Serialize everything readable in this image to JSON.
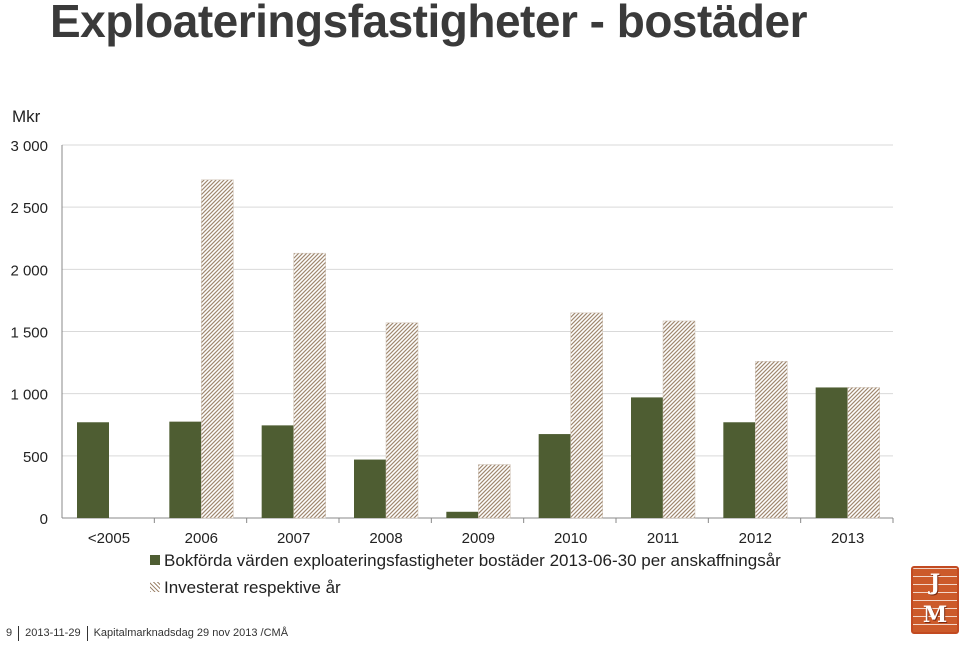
{
  "slide": {
    "title": "Exploateringsfastigheter - bostäder",
    "unit_label": "Mkr"
  },
  "footer": {
    "page_number": "9",
    "date": "2013-11-29",
    "event": "Kapitalmarknadsdag 29 nov 2013 /CMÅ"
  },
  "logo": {
    "letters": [
      "J",
      "M"
    ]
  },
  "colors": {
    "booked": "#4e5d32",
    "invested_hatch": "#a08870",
    "gridline": "#d9d9d9",
    "axis": "#888888"
  },
  "chart_data": {
    "type": "bar",
    "categories": [
      "<2005",
      "2006",
      "2007",
      "2008",
      "2009",
      "2010",
      "2011",
      "2012",
      "2013"
    ],
    "series": [
      {
        "name": "Bokförda värden exploateringsfastigheter bostäder 2013-06-30 per anskaffningsår",
        "pattern": "solid",
        "values": [
          770,
          775,
          745,
          470,
          50,
          675,
          970,
          770,
          1050
        ]
      },
      {
        "name": "Investerat respektive år",
        "pattern": "hatched",
        "values": [
          null,
          2720,
          2130,
          1570,
          430,
          1650,
          1585,
          1260,
          1050
        ]
      }
    ],
    "yticks": [
      "0",
      "500",
      "1 000",
      "1 500",
      "2 000",
      "2 500",
      "3 000"
    ],
    "ylim": [
      0,
      3000
    ],
    "ylabel": "Mkr",
    "grid": true,
    "legend_position": "bottom"
  }
}
